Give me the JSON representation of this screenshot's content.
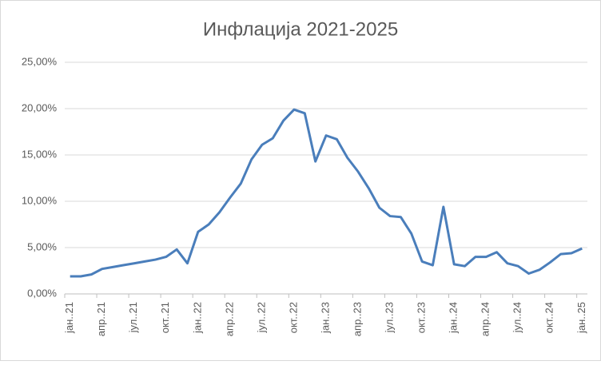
{
  "chart_data": {
    "type": "line",
    "title": "Инфлација 2021-2025",
    "categories": [
      "јан..21",
      null,
      null,
      "апр..21",
      null,
      null,
      "јул..21",
      null,
      null,
      "окт..21",
      null,
      null,
      "јан..22",
      null,
      null,
      "апр..22",
      null,
      null,
      "јул..22",
      null,
      null,
      "окт..22",
      null,
      null,
      "јан..23",
      null,
      null,
      "апр..23",
      null,
      null,
      "јул..23",
      null,
      null,
      "окт..23",
      null,
      null,
      "јан..24",
      null,
      null,
      "апр..24",
      null,
      null,
      "јул..24",
      null,
      null,
      "окт..24",
      null,
      null,
      "јан..25"
    ],
    "series": [
      {
        "color": "#4a7ebb",
        "values": [
          1.9,
          1.9,
          2.1,
          2.7,
          2.9,
          3.1,
          3.3,
          3.5,
          3.7,
          4.0,
          4.8,
          3.3,
          6.7,
          7.5,
          8.8,
          10.4,
          11.9,
          14.5,
          16.1,
          16.8,
          18.7,
          19.9,
          19.5,
          14.3,
          17.1,
          16.7,
          14.7,
          13.2,
          11.4,
          9.3,
          8.4,
          8.3,
          6.5,
          3.5,
          3.1,
          9.4,
          3.2,
          3.0,
          4.0,
          4.0,
          4.5,
          3.3,
          3.0,
          2.2,
          2.6,
          3.4,
          4.3,
          4.4,
          4.9
        ]
      }
    ],
    "ylim": [
      0,
      25
    ],
    "yticks": [
      {
        "value": 0,
        "label": "0,00%"
      },
      {
        "value": 5,
        "label": "5,00%"
      },
      {
        "value": 10,
        "label": "10,00%"
      },
      {
        "value": 15,
        "label": "15,00%"
      },
      {
        "value": 20,
        "label": "20,00%"
      },
      {
        "value": 25,
        "label": "25,00%"
      }
    ],
    "grid": true
  }
}
